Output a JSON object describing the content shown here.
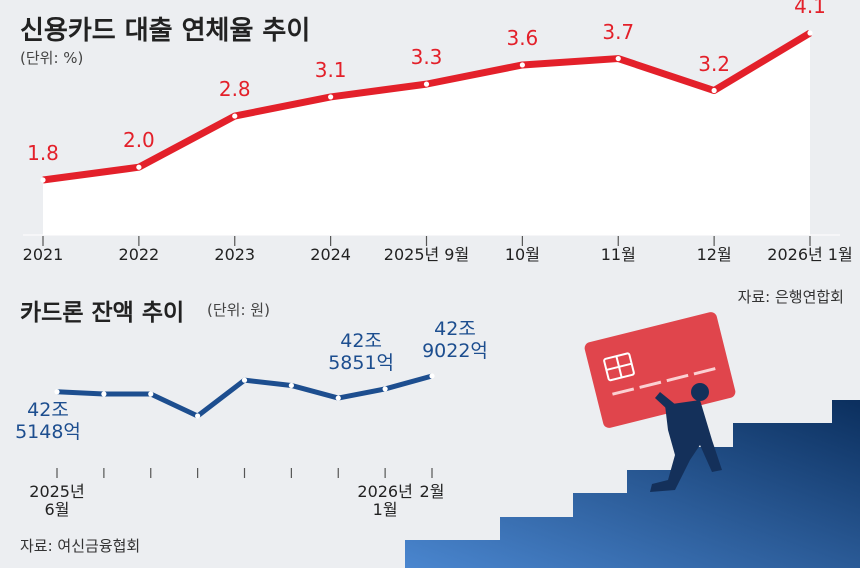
{
  "chart_data": [
    {
      "type": "line",
      "title": "신용카드 대출 연체율 추이",
      "subtitle": "(단위: %)",
      "categories": [
        "2021",
        "2022",
        "2023",
        "2024",
        "2025년 9월",
        "10월",
        "11월",
        "12월",
        "2026년 1월"
      ],
      "series": [
        {
          "name": "신용카드 대출 연체율",
          "color": "#e3202a",
          "values": [
            1.8,
            2.0,
            2.8,
            3.1,
            3.3,
            3.6,
            3.7,
            3.2,
            4.1
          ],
          "value_labels": [
            "1.8",
            "2.0",
            "2.8",
            "3.1",
            "3.3",
            "3.6",
            "3.7",
            "3.2",
            "4.1"
          ]
        }
      ],
      "source": "자료: 은행연합회"
    },
    {
      "type": "line",
      "title": "카드론 잔액 추이",
      "subtitle": "(단위: 원)",
      "categories": [
        "2025년 6월",
        null,
        null,
        null,
        null,
        null,
        null,
        "2026년 1월",
        "2월"
      ],
      "series": [
        {
          "name": "카드론 잔액",
          "color": "#1d4e8f",
          "values": [
            42514800000000,
            42460000000000,
            42460000000000,
            41920000000000,
            42800000000000,
            42670000000000,
            42360000000000,
            42585100000000,
            42902200000000
          ],
          "value_labels": [
            "42조 5148억",
            null,
            null,
            null,
            null,
            null,
            null,
            "42조 5851억",
            "42조 9022억"
          ]
        }
      ],
      "source": "자료: 여신금융협회"
    }
  ]
}
